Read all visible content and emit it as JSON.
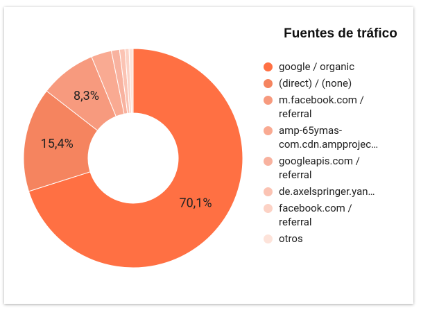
{
  "chart_data": {
    "type": "pie",
    "title": "Fuentes de tráfico",
    "categories": [
      "google / organic",
      "(direct) / (none)",
      "m.facebook.com / referral",
      "amp-65ymas-com.cdn.ampprojec…",
      "googleapis.com / referral",
      "de.axelspringer.yan…",
      "facebook.com / referral",
      "otros"
    ],
    "values": [
      70.1,
      15.4,
      8.3,
      3.0,
      1.2,
      0.8,
      0.6,
      0.6
    ],
    "value_labels": [
      "70,1%",
      "15,4%",
      "8,3%",
      null,
      null,
      null,
      null,
      null
    ],
    "colors": [
      "#ff7043",
      "#f5845f",
      "#f79a7e",
      "#f9aa92",
      "#f8b29f",
      "#fbc3b3",
      "#fcd2c5",
      "#fde3da"
    ],
    "donut": true
  }
}
